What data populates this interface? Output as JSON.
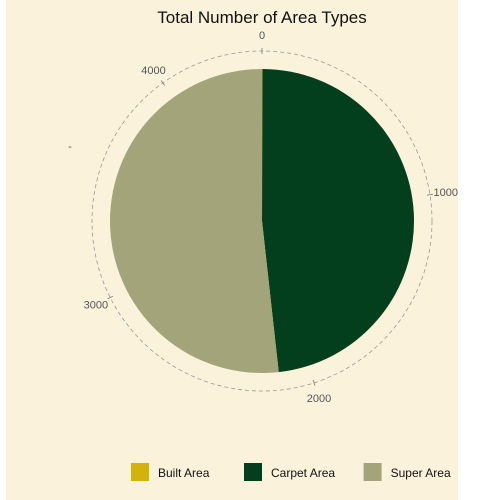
{
  "chart_data": {
    "type": "pie",
    "title": "Total Number of Area Types",
    "ylabel": "-",
    "categories": [
      "Built Area",
      "Carpet Area",
      "Super Area"
    ],
    "values": [
      2,
      2140,
      2298
    ],
    "colors": [
      "#d4b20c",
      "#033f1c",
      "#a3a479"
    ],
    "axis_ticks": [
      "0",
      "1000",
      "2000",
      "3000",
      "4000"
    ],
    "axis_range": [
      0,
      4440
    ],
    "grid": true,
    "legend_position": "bottom",
    "start_angle": "top",
    "direction": "clockwise"
  }
}
